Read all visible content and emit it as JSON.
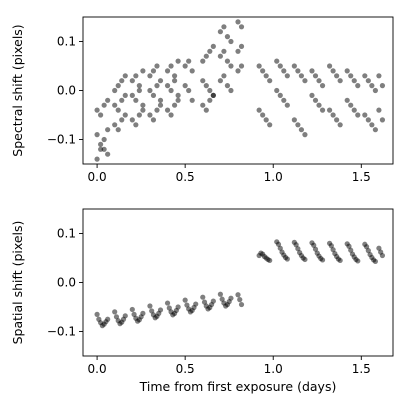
{
  "chart_data": [
    {
      "type": "scatter",
      "title": "",
      "xlabel": "",
      "ylabel": "Spectral shift (pixels)",
      "xlim": [
        -0.08,
        1.68
      ],
      "ylim": [
        -0.15,
        0.15
      ],
      "xticks": [
        0.0,
        0.5,
        1.0,
        1.5
      ],
      "xtick_labels": [
        "0.0",
        "0.5",
        "1.0",
        "1.5"
      ],
      "yticks": [
        -0.1,
        0.0,
        0.1
      ],
      "ytick_labels": [
        "−0.1",
        "0.0",
        "0.1"
      ],
      "grid": false,
      "marker_color": "#000000",
      "marker_opacity": 0.5,
      "series": [
        {
          "x": [
            0.0,
            0.02,
            0.04,
            0.06,
            0.0,
            0.02,
            0.04,
            0.06,
            0.0,
            0.02,
            0.04,
            0.06,
            0.1,
            0.12,
            0.14,
            0.16,
            0.1,
            0.12,
            0.14,
            0.16,
            0.1,
            0.12,
            0.14,
            0.16,
            0.2,
            0.22,
            0.24,
            0.26,
            0.2,
            0.22,
            0.24,
            0.26,
            0.2,
            0.22,
            0.24,
            0.26,
            0.3,
            0.32,
            0.34,
            0.36,
            0.3,
            0.32,
            0.34,
            0.36,
            0.3,
            0.32,
            0.34,
            0.36,
            0.4,
            0.42,
            0.44,
            0.46,
            0.4,
            0.42,
            0.44,
            0.46,
            0.4,
            0.42,
            0.44,
            0.46,
            0.5,
            0.52,
            0.54,
            0.5,
            0.52,
            0.54,
            0.6,
            0.62,
            0.64,
            0.66,
            0.6,
            0.62,
            0.64,
            0.66,
            0.6,
            0.62,
            0.64,
            0.66,
            0.7,
            0.72,
            0.74,
            0.76,
            0.7,
            0.72,
            0.74,
            0.76,
            0.7,
            0.72,
            0.74,
            0.76,
            0.8,
            0.82,
            0.8,
            0.82,
            0.8,
            0.82,
            0.92,
            0.94,
            0.96,
            0.98,
            0.92,
            0.94,
            0.96,
            0.98,
            1.02,
            1.04,
            1.06,
            1.08,
            1.02,
            1.04,
            1.06,
            1.08,
            1.12,
            1.14,
            1.16,
            1.18,
            1.12,
            1.14,
            1.16,
            1.18,
            1.22,
            1.24,
            1.26,
            1.28,
            1.22,
            1.24,
            1.26,
            1.28,
            1.32,
            1.34,
            1.36,
            1.38,
            1.32,
            1.34,
            1.36,
            1.38,
            1.42,
            1.44,
            1.46,
            1.48,
            1.42,
            1.44,
            1.46,
            1.48,
            1.52,
            1.54,
            1.56,
            1.58,
            1.52,
            1.54,
            1.56,
            1.58,
            1.6,
            1.62,
            1.6,
            1.62
          ],
          "y": [
            -0.04,
            -0.05,
            -0.03,
            -0.02,
            -0.09,
            -0.11,
            -0.12,
            -0.13,
            -0.14,
            -0.12,
            -0.1,
            -0.08,
            0.0,
            0.01,
            0.02,
            0.03,
            -0.03,
            -0.04,
            -0.02,
            -0.01,
            -0.07,
            -0.08,
            -0.06,
            -0.05,
            0.02,
            0.03,
            0.01,
            0.04,
            -0.01,
            -0.02,
            0.0,
            -0.03,
            -0.06,
            -0.07,
            -0.05,
            -0.04,
            0.03,
            0.04,
            0.05,
            0.02,
            0.0,
            -0.01,
            0.01,
            -0.02,
            -0.05,
            -0.06,
            -0.04,
            -0.03,
            0.04,
            0.05,
            0.03,
            0.06,
            0.01,
            0.0,
            0.02,
            -0.01,
            -0.04,
            -0.05,
            -0.03,
            -0.02,
            0.05,
            0.06,
            0.04,
            0.01,
            0.0,
            -0.02,
            0.06,
            0.07,
            0.08,
            0.09,
            0.02,
            0.01,
            0.0,
            -0.01,
            -0.03,
            -0.04,
            -0.02,
            -0.01,
            0.12,
            0.13,
            0.11,
            0.1,
            0.07,
            0.08,
            0.06,
            0.05,
            0.02,
            0.03,
            0.01,
            0.0,
            0.14,
            0.13,
            0.08,
            0.09,
            0.04,
            0.05,
            0.05,
            0.04,
            0.03,
            0.02,
            -0.04,
            -0.05,
            -0.06,
            -0.07,
            0.06,
            0.05,
            0.04,
            0.03,
            0.0,
            -0.01,
            -0.02,
            -0.03,
            0.05,
            0.04,
            0.03,
            0.02,
            -0.06,
            -0.07,
            -0.08,
            -0.09,
            0.04,
            0.03,
            0.02,
            0.01,
            -0.01,
            -0.02,
            -0.03,
            -0.04,
            0.05,
            0.04,
            0.03,
            0.02,
            -0.04,
            -0.05,
            -0.06,
            -0.07,
            0.04,
            0.03,
            0.02,
            0.01,
            -0.02,
            -0.03,
            -0.04,
            -0.05,
            0.03,
            0.02,
            0.01,
            0.0,
            -0.05,
            -0.06,
            -0.07,
            -0.08,
            0.03,
            0.01,
            -0.04,
            -0.06
          ]
        }
      ]
    },
    {
      "type": "scatter",
      "title": "",
      "xlabel": "Time from first exposure (days)",
      "ylabel": "Spatial shift (pixels)",
      "xlim": [
        -0.08,
        1.68
      ],
      "ylim": [
        -0.15,
        0.15
      ],
      "xticks": [
        0.0,
        0.5,
        1.0,
        1.5
      ],
      "xtick_labels": [
        "0.0",
        "0.5",
        "1.0",
        "1.5"
      ],
      "yticks": [
        -0.1,
        0.0,
        0.1
      ],
      "ytick_labels": [
        "−0.1",
        "0.0",
        "0.1"
      ],
      "grid": false,
      "marker_color": "#000000",
      "marker_opacity": 0.5,
      "series": [
        {
          "x": [
            0.0,
            0.01,
            0.02,
            0.03,
            0.04,
            0.05,
            0.06,
            0.1,
            0.11,
            0.12,
            0.13,
            0.14,
            0.15,
            0.16,
            0.2,
            0.21,
            0.22,
            0.23,
            0.24,
            0.25,
            0.26,
            0.3,
            0.31,
            0.32,
            0.33,
            0.34,
            0.35,
            0.36,
            0.4,
            0.41,
            0.42,
            0.43,
            0.44,
            0.45,
            0.46,
            0.5,
            0.51,
            0.52,
            0.53,
            0.54,
            0.55,
            0.56,
            0.6,
            0.61,
            0.62,
            0.63,
            0.64,
            0.65,
            0.66,
            0.7,
            0.71,
            0.72,
            0.73,
            0.74,
            0.75,
            0.76,
            0.8,
            0.81,
            0.82,
            0.92,
            0.93,
            0.94,
            0.95,
            0.96,
            0.97,
            0.98,
            1.02,
            1.03,
            1.04,
            1.05,
            1.06,
            1.07,
            1.08,
            1.12,
            1.13,
            1.14,
            1.15,
            1.16,
            1.17,
            1.18,
            1.22,
            1.23,
            1.24,
            1.25,
            1.26,
            1.27,
            1.28,
            1.32,
            1.33,
            1.34,
            1.35,
            1.36,
            1.37,
            1.38,
            1.42,
            1.43,
            1.44,
            1.45,
            1.46,
            1.47,
            1.48,
            1.52,
            1.53,
            1.54,
            1.55,
            1.56,
            1.57,
            1.58,
            1.6,
            1.61,
            1.62
          ],
          "y": [
            -0.065,
            -0.075,
            -0.082,
            -0.088,
            -0.085,
            -0.08,
            -0.075,
            -0.06,
            -0.07,
            -0.078,
            -0.084,
            -0.081,
            -0.075,
            -0.068,
            -0.055,
            -0.065,
            -0.073,
            -0.079,
            -0.076,
            -0.07,
            -0.063,
            -0.048,
            -0.058,
            -0.066,
            -0.072,
            -0.069,
            -0.063,
            -0.056,
            -0.042,
            -0.052,
            -0.06,
            -0.066,
            -0.063,
            -0.057,
            -0.05,
            -0.036,
            -0.046,
            -0.054,
            -0.06,
            -0.057,
            -0.051,
            -0.044,
            -0.03,
            -0.04,
            -0.048,
            -0.054,
            -0.051,
            -0.045,
            -0.038,
            -0.024,
            -0.034,
            -0.042,
            -0.048,
            -0.045,
            -0.039,
            -0.032,
            -0.025,
            -0.035,
            -0.045,
            0.055,
            0.06,
            0.058,
            0.053,
            0.05,
            0.047,
            0.045,
            0.083,
            0.078,
            0.07,
            0.062,
            0.056,
            0.051,
            0.048,
            0.082,
            0.077,
            0.069,
            0.061,
            0.055,
            0.05,
            0.047,
            0.081,
            0.076,
            0.068,
            0.06,
            0.054,
            0.049,
            0.046,
            0.08,
            0.075,
            0.067,
            0.059,
            0.053,
            0.048,
            0.045,
            0.079,
            0.074,
            0.066,
            0.058,
            0.052,
            0.047,
            0.044,
            0.078,
            0.073,
            0.065,
            0.057,
            0.051,
            0.046,
            0.043,
            0.07,
            0.062,
            0.055
          ]
        }
      ]
    }
  ]
}
